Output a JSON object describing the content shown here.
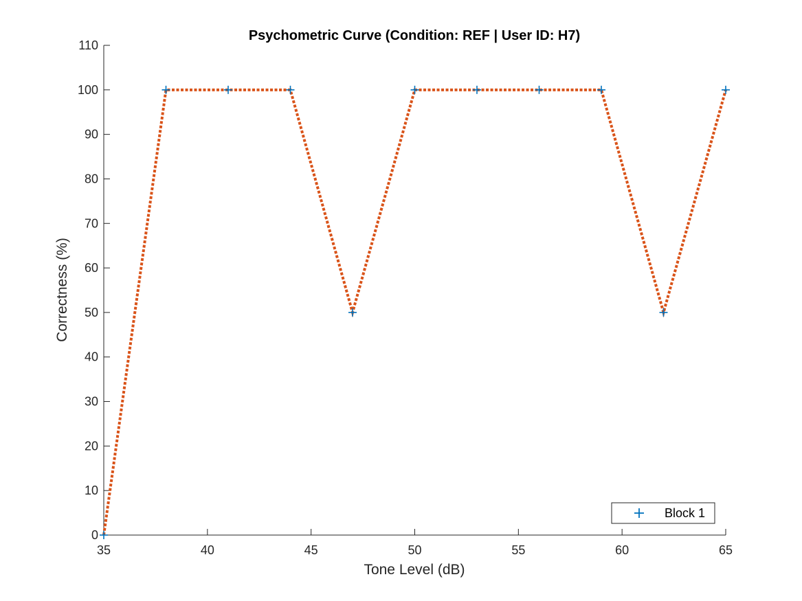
{
  "chart_data": {
    "type": "line",
    "title": "Psychometric Curve (Condition: REF | User ID: H7)",
    "xlabel": "Tone Level (dB)",
    "ylabel": "Correctness (%)",
    "xlim": [
      35,
      65
    ],
    "ylim": [
      0,
      110
    ],
    "xticks": [
      35,
      40,
      45,
      50,
      55,
      60,
      65
    ],
    "yticks": [
      0,
      10,
      20,
      30,
      40,
      50,
      60,
      70,
      80,
      90,
      100,
      110
    ],
    "grid": false,
    "legend": {
      "position": "bottom-right",
      "entries": [
        "Block 1"
      ]
    },
    "series": [
      {
        "name": "Block 1",
        "marker": "+",
        "marker_color": "#0072BD",
        "line_color": "#D95319",
        "line_style": "dotted",
        "x": [
          35,
          38,
          41,
          44,
          47,
          50,
          53,
          56,
          59,
          62,
          65
        ],
        "y": [
          0,
          100,
          100,
          100,
          50,
          100,
          100,
          100,
          100,
          50,
          100
        ]
      }
    ]
  }
}
